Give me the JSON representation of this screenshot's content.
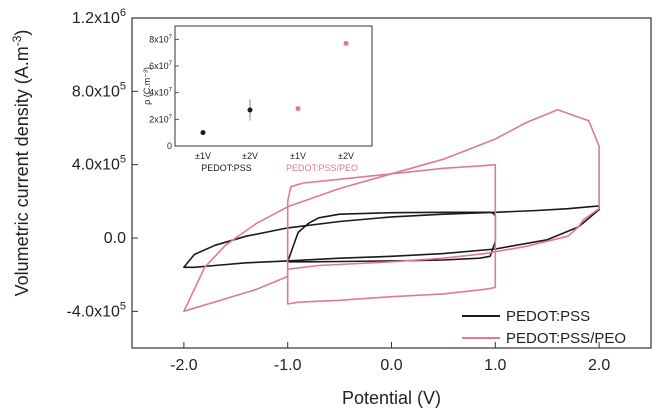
{
  "chart_data": [
    {
      "type": "line",
      "xlabel": "Potential (V)",
      "ylabel_main": "Volumetric current density (A.m",
      "ylabel_sup": "-3",
      "ylabel_end": ")",
      "xlim": [
        -2.5,
        2.5
      ],
      "ylim": [
        -600000,
        1200000
      ],
      "xticks": [
        {
          "value": -2.0,
          "label": "-2.0"
        },
        {
          "value": -1.0,
          "label": "-1.0"
        },
        {
          "value": 0.0,
          "label": "0.0"
        },
        {
          "value": 1.0,
          "label": "1.0"
        },
        {
          "value": 2.0,
          "label": "2.0"
        }
      ],
      "yticks": [
        {
          "value": -400000,
          "mant": "-4.0x10",
          "exp": "5"
        },
        {
          "value": 0,
          "mant": "0.0",
          "exp": ""
        },
        {
          "value": 400000,
          "mant": "4.0x10",
          "exp": "5"
        },
        {
          "value": 800000,
          "mant": "8.0x10",
          "exp": "5"
        },
        {
          "value": 1200000,
          "mant": "1.2x10",
          "exp": "6"
        }
      ],
      "legend_position": "bottom-right",
      "series": [
        {
          "name": "PEDOT:PSS",
          "color": "#1a1a1a",
          "x": [
            -2.0,
            -1.9,
            -1.7,
            -1.4,
            -1.0,
            -0.5,
            0.0,
            0.5,
            1.0,
            1.5,
            1.8,
            2.0,
            2.0,
            1.9,
            1.7,
            1.4,
            1.0,
            0.5,
            0.0,
            -0.5,
            -1.0,
            -1.4,
            -1.7,
            -1.9,
            -2.0
          ],
          "y": [
            -160000,
            -160000,
            -150000,
            -135000,
            -125000,
            -110000,
            -100000,
            -85000,
            -60000,
            -10000,
            60000,
            155000,
            175000,
            170000,
            160000,
            150000,
            140000,
            130000,
            115000,
            90000,
            55000,
            10000,
            -40000,
            -90000,
            -160000
          ]
        },
        {
          "name": "",
          "color": "#1a1a1a",
          "x": [
            -1.0,
            -0.9,
            -0.8,
            -0.5,
            0.0,
            0.5,
            0.85,
            0.95,
            1.0,
            1.0,
            0.98,
            0.95,
            0.85,
            0.5,
            0.0,
            -0.5,
            -0.7,
            -0.8,
            -0.9,
            -1.0
          ],
          "y": [
            -130000,
            -130000,
            -130000,
            -128000,
            -125000,
            -120000,
            -110000,
            -100000,
            -20000,
            120000,
            135000,
            140000,
            140000,
            140000,
            138000,
            130000,
            110000,
            80000,
            30000,
            -130000
          ]
        },
        {
          "name": "PEDOT:PSS/PEO",
          "color": "#e07a8e",
          "x": [
            -2.0,
            -1.3,
            -1.0,
            -1.0,
            -0.7,
            0.0,
            0.5,
            0.9,
            1.3,
            1.7,
            1.8,
            1.85,
            1.9,
            1.95,
            2.0,
            2.0,
            1.9,
            1.6,
            1.3,
            1.0,
            0.5,
            0.0,
            -0.5,
            -1.0,
            -1.3,
            -1.6,
            -1.8,
            -2.0
          ],
          "y": [
            -400000,
            -280000,
            -210000,
            -170000,
            -150000,
            -130000,
            -110000,
            -85000,
            -45000,
            10000,
            60000,
            100000,
            120000,
            140000,
            160000,
            500000,
            640000,
            700000,
            630000,
            540000,
            430000,
            350000,
            270000,
            170000,
            80000,
            -40000,
            -160000,
            -400000
          ]
        },
        {
          "name": "",
          "color": "#e07a8e",
          "x": [
            -1.0,
            -0.9,
            -0.5,
            0.0,
            0.5,
            0.9,
            1.0,
            1.0,
            0.9,
            0.5,
            0.0,
            -0.5,
            -0.85,
            -0.97,
            -1.0,
            -1.0
          ],
          "y": [
            -360000,
            -350000,
            -340000,
            -320000,
            -305000,
            -280000,
            -270000,
            400000,
            395000,
            380000,
            350000,
            320000,
            300000,
            280000,
            200000,
            -360000
          ]
        }
      ]
    },
    {
      "type": "scatter",
      "ylabel": "ρ (C.m⁻³)",
      "ylim": [
        0,
        90000000
      ],
      "yticks": [
        {
          "value": 0,
          "mant": "0",
          "exp": ""
        },
        {
          "value": 20000000,
          "mant": "2x10",
          "exp": "7"
        },
        {
          "value": 40000000,
          "mant": "4x10",
          "exp": "7"
        },
        {
          "value": 60000000,
          "mant": "6x10",
          "exp": "7"
        },
        {
          "value": 80000000,
          "mant": "8x10",
          "exp": "7"
        }
      ],
      "categories": [
        "±1V",
        "±2V",
        "±1V",
        "±2V"
      ],
      "group_labels": [
        {
          "label": "PEDOT:PSS",
          "color": "#1a1a1a"
        },
        {
          "label": "PEDOT:PSS/PEO",
          "color": "#e07a8e"
        }
      ],
      "points": [
        {
          "category_index": 0,
          "value": 10000000,
          "error": 1500000,
          "color": "#1a1a1a"
        },
        {
          "category_index": 1,
          "value": 27000000,
          "error": 8000000,
          "color": "#1a1a1a"
        },
        {
          "category_index": 2,
          "value": 28000000,
          "error": 0,
          "color": "#e07a8e"
        },
        {
          "category_index": 3,
          "value": 77000000,
          "error": 0,
          "color": "#e07a8e"
        }
      ]
    }
  ]
}
